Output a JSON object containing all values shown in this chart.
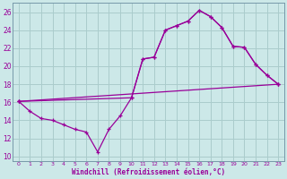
{
  "xlabel": "Windchill (Refroidissement éolien,°C)",
  "bg_color": "#cce8e8",
  "grid_color": "#aacccc",
  "line_color": "#990099",
  "spine_color": "#7799aa",
  "xlim": [
    -0.5,
    23.5
  ],
  "ylim": [
    9.5,
    27
  ],
  "yticks": [
    10,
    12,
    14,
    16,
    18,
    20,
    22,
    24,
    26
  ],
  "xticks": [
    0,
    1,
    2,
    3,
    4,
    5,
    6,
    7,
    8,
    9,
    10,
    11,
    12,
    13,
    14,
    15,
    16,
    17,
    18,
    19,
    20,
    21,
    22,
    23
  ],
  "series1_x": [
    0,
    1,
    2,
    3,
    4,
    5,
    6,
    7,
    8,
    9,
    10,
    11,
    12,
    13,
    14,
    15,
    16,
    17,
    18,
    19,
    20,
    21,
    22,
    23
  ],
  "series1_y": [
    16.1,
    15.0,
    14.2,
    14.0,
    13.5,
    13.0,
    12.7,
    10.5,
    13.0,
    14.5,
    16.5,
    20.8,
    21.0,
    24.0,
    24.5,
    25.0,
    26.2,
    25.5,
    24.3,
    22.2,
    22.1,
    20.2,
    19.0,
    18.0
  ],
  "series2_x": [
    0,
    10,
    11,
    12,
    13,
    14,
    15,
    16,
    17,
    18,
    19,
    20,
    21,
    22,
    23
  ],
  "series2_y": [
    16.1,
    16.5,
    20.8,
    21.0,
    24.0,
    24.5,
    25.0,
    26.2,
    25.5,
    24.3,
    22.2,
    22.1,
    20.2,
    19.0,
    18.0
  ],
  "series3_x": [
    0,
    23
  ],
  "series3_y": [
    16.1,
    18.0
  ]
}
